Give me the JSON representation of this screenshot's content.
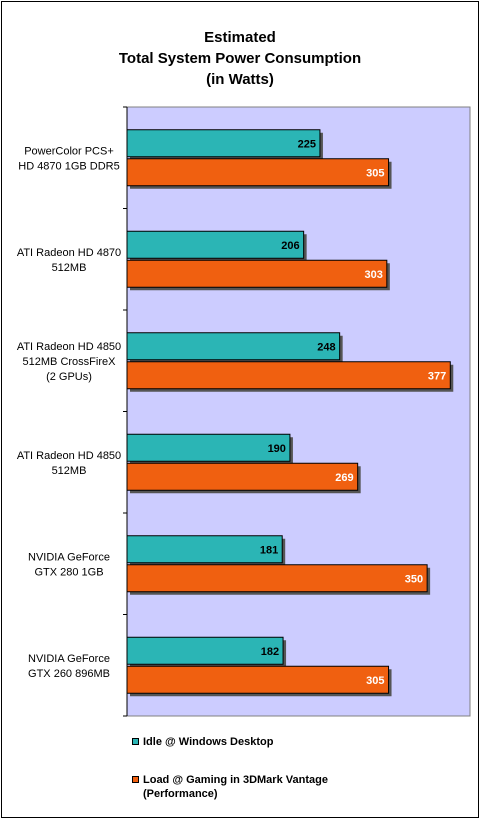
{
  "chart_data": {
    "type": "bar",
    "orientation": "horizontal",
    "title_lines": [
      "Estimated",
      "Total System Power Consumption",
      "(in Watts)"
    ],
    "categories": [
      [
        "PowerColor PCS+",
        "HD 4870 1GB DDR5"
      ],
      [
        "ATI Radeon HD 4870",
        "512MB"
      ],
      [
        "ATI Radeon HD 4850",
        "512MB CrossFireX",
        "(2 GPUs)"
      ],
      [
        "ATI Radeon HD 4850",
        "512MB"
      ],
      [
        "NVIDIA GeForce",
        "GTX 280 1GB"
      ],
      [
        "NVIDIA GeForce",
        "GTX 260 896MB"
      ]
    ],
    "series": [
      {
        "name": "Idle @ Windows Desktop",
        "color": "#2bb5b5",
        "label_color": "#000000",
        "values": [
          225,
          206,
          248,
          190,
          181,
          182
        ]
      },
      {
        "name": "Load @ Gaming in 3DMark Vantage (Performance)",
        "color": "#f06010",
        "label_color": "#ffffff",
        "values": [
          305,
          303,
          377,
          269,
          350,
          305
        ]
      }
    ],
    "xlim": [
      0,
      400
    ],
    "grid": false,
    "plot_background": "#ccccff",
    "legend_position": "bottom"
  },
  "legend": {
    "items": [
      {
        "label": "Idle @ Windows Desktop",
        "color": "#2bb5b5"
      },
      {
        "label_lines": [
          "Load @ Gaming in 3DMark Vantage",
          "(Performance)"
        ],
        "color": "#f06010"
      }
    ]
  }
}
